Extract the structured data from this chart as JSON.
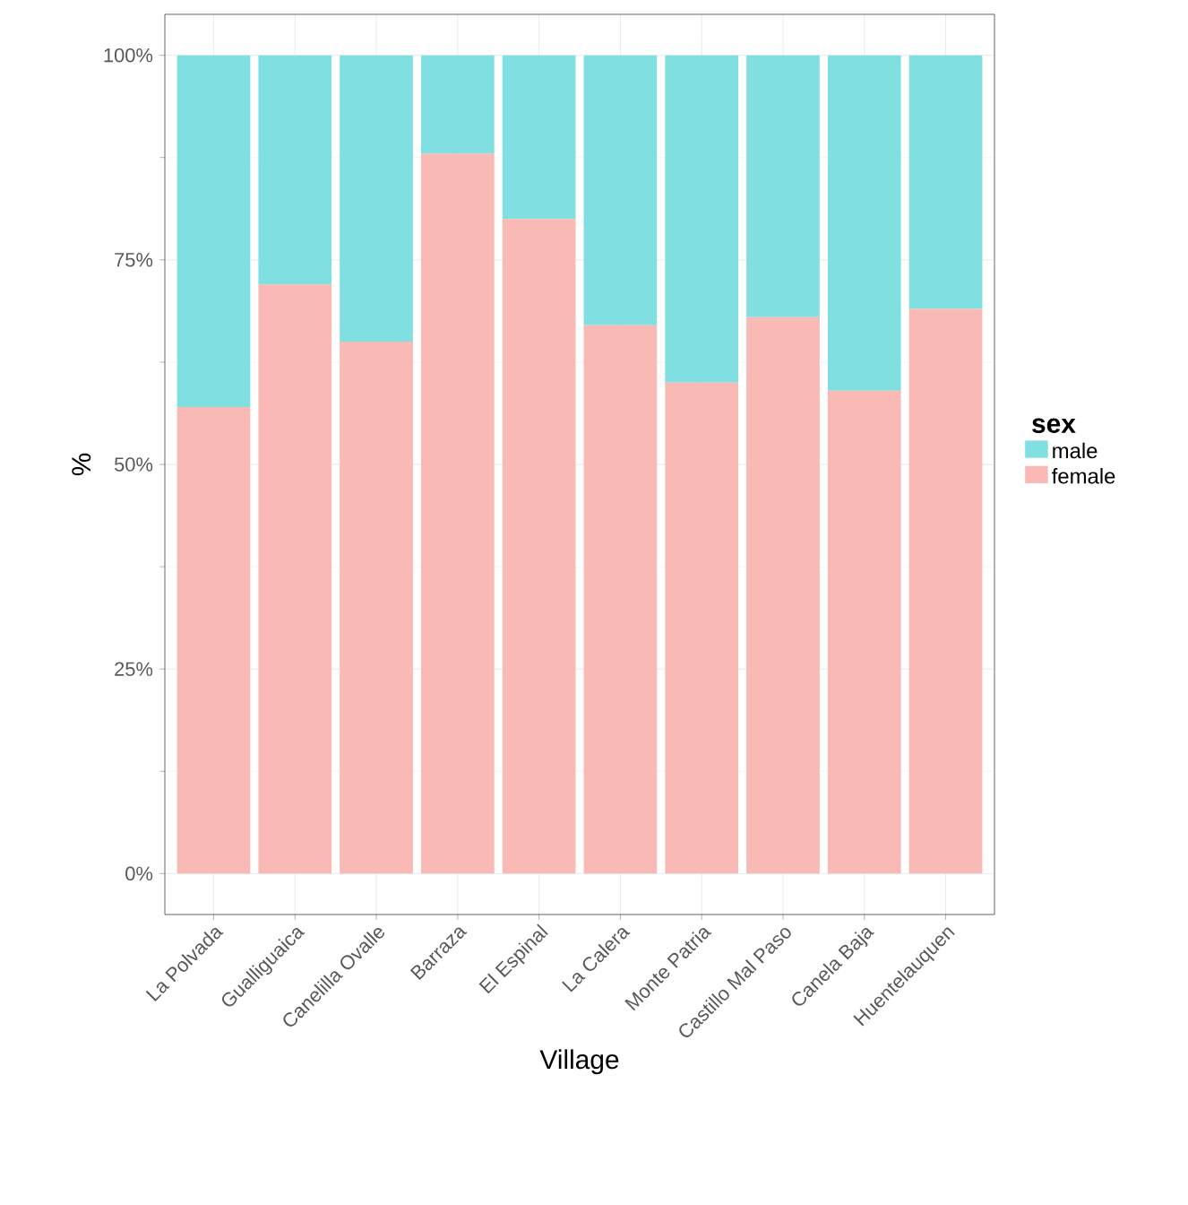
{
  "chart_data": {
    "type": "bar",
    "stacked": true,
    "xlabel": "Village",
    "ylabel": "%",
    "legend_title": "sex",
    "legend": "right",
    "grid": true,
    "categories": [
      "La Polvada",
      "Gualliguaica",
      "Canelilla Ovalle",
      "Barraza",
      "El Espinal",
      "La Calera",
      "Monte Patria",
      "Castillo Mal Paso",
      "Canela Baja",
      "Huentelauquen"
    ],
    "series": [
      {
        "name": "female",
        "color": "#f9b9b5",
        "values": [
          57,
          72,
          65,
          88,
          80,
          67,
          60,
          68,
          59,
          69
        ]
      },
      {
        "name": "male",
        "color": "#80dfe1",
        "values": [
          43,
          28,
          35,
          12,
          20,
          33,
          40,
          32,
          41,
          31
        ]
      }
    ],
    "ylim": [
      -5,
      105
    ],
    "yticks": [
      {
        "value": 0,
        "label": "0%"
      },
      {
        "value": 25,
        "label": "25%"
      },
      {
        "value": 50,
        "label": "50%"
      },
      {
        "value": 75,
        "label": "75%"
      },
      {
        "value": 100,
        "label": "100%"
      }
    ]
  }
}
